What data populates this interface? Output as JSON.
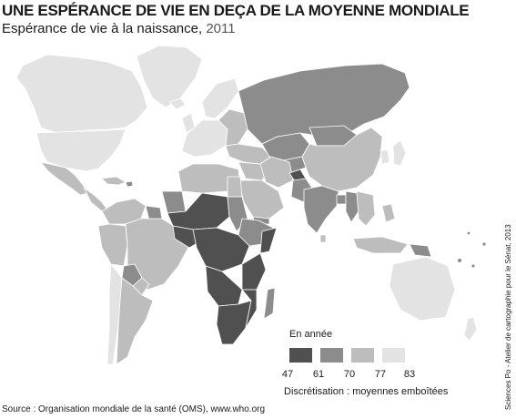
{
  "header": {
    "title": "UNE ESPÉRANCE DE VIE EN DEÇA DE LA MOYENNE MONDIALE",
    "subtitle_main": "Espérance de vie à la naissance, ",
    "subtitle_year": "2011"
  },
  "legend": {
    "title": "En année",
    "classes": [
      {
        "from": "47",
        "to": "61",
        "color": "#505050"
      },
      {
        "from": "61",
        "to": "70",
        "color": "#8c8c8c"
      },
      {
        "from": "70",
        "to": "77",
        "color": "#bdbdbd"
      },
      {
        "from": "77",
        "to": "83",
        "color": "#e3e3e3"
      }
    ],
    "ticks": [
      "47",
      "61",
      "70",
      "77",
      "83"
    ],
    "note": "Discrétisation : moyennes emboîtées"
  },
  "source": "Source : Organisation mondiale de la santé (OMS), www.who.org",
  "credit": "Sciences Po - Atelier de cartographie pour le Sénat, 2013"
}
